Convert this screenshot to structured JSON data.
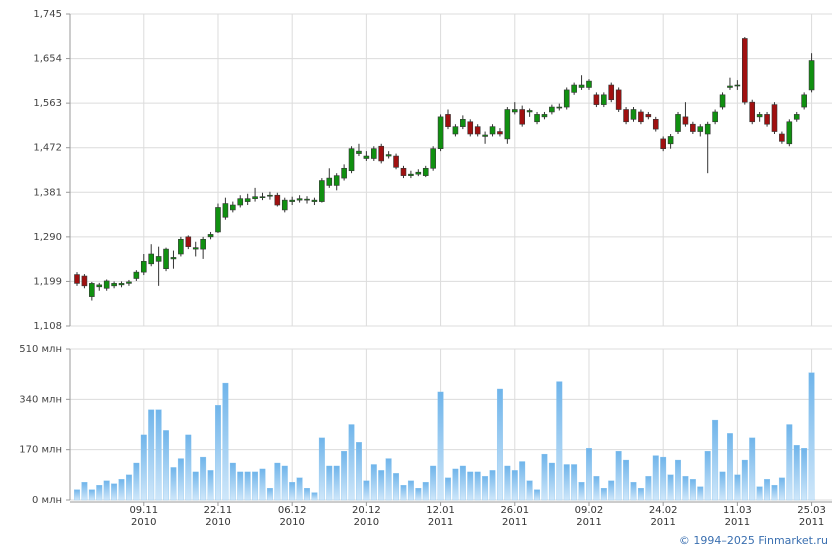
{
  "chart_data": [
    {
      "type": "candlestick",
      "up_color": "#109010",
      "down_color": "#a01010",
      "open": [
        1213,
        1210,
        1168,
        1188,
        1185,
        1190,
        1192,
        1195,
        1205,
        1218,
        1235,
        1240,
        1225,
        1245,
        1255,
        1290,
        1265,
        1265,
        1290,
        1300,
        1330,
        1345,
        1355,
        1362,
        1368,
        1370,
        1373,
        1375,
        1345,
        1362,
        1365,
        1365,
        1362,
        1362,
        1395,
        1395,
        1410,
        1425,
        1460,
        1450,
        1450,
        1475,
        1455,
        1455,
        1430,
        1415,
        1418,
        1415,
        1430,
        1470,
        1540,
        1500,
        1515,
        1525,
        1515,
        1495,
        1500,
        1505,
        1490,
        1545,
        1550,
        1545,
        1525,
        1535,
        1545,
        1553,
        1555,
        1585,
        1595,
        1595,
        1580,
        1560,
        1600,
        1590,
        1550,
        1530,
        1545,
        1540,
        1530,
        1490,
        1480,
        1505,
        1535,
        1520,
        1505,
        1500,
        1525,
        1555,
        1595,
        1598,
        1695,
        1565,
        1535,
        1540,
        1560,
        1500,
        1480,
        1530,
        1555,
        1590
      ],
      "high": [
        1218,
        1214,
        1198,
        1196,
        1203,
        1199,
        1199,
        1202,
        1222,
        1255,
        1275,
        1270,
        1268,
        1262,
        1290,
        1293,
        1280,
        1290,
        1300,
        1358,
        1370,
        1362,
        1375,
        1378,
        1390,
        1380,
        1382,
        1380,
        1370,
        1372,
        1375,
        1373,
        1370,
        1410,
        1430,
        1420,
        1438,
        1475,
        1480,
        1465,
        1475,
        1480,
        1465,
        1460,
        1435,
        1425,
        1428,
        1435,
        1475,
        1540,
        1550,
        1520,
        1538,
        1530,
        1520,
        1505,
        1520,
        1512,
        1555,
        1565,
        1558,
        1552,
        1545,
        1545,
        1560,
        1562,
        1595,
        1605,
        1620,
        1612,
        1585,
        1585,
        1605,
        1595,
        1555,
        1555,
        1550,
        1545,
        1535,
        1495,
        1500,
        1545,
        1565,
        1525,
        1520,
        1525,
        1550,
        1585,
        1615,
        1610,
        1698,
        1570,
        1545,
        1545,
        1565,
        1505,
        1530,
        1545,
        1585,
        1665
      ],
      "low": [
        1190,
        1185,
        1160,
        1180,
        1180,
        1185,
        1187,
        1190,
        1200,
        1212,
        1230,
        1190,
        1220,
        1225,
        1250,
        1265,
        1250,
        1245,
        1285,
        1298,
        1325,
        1340,
        1350,
        1355,
        1362,
        1365,
        1366,
        1352,
        1340,
        1355,
        1360,
        1358,
        1355,
        1360,
        1390,
        1385,
        1405,
        1420,
        1455,
        1445,
        1445,
        1440,
        1450,
        1428,
        1410,
        1410,
        1414,
        1412,
        1425,
        1465,
        1510,
        1495,
        1510,
        1495,
        1495,
        1480,
        1495,
        1495,
        1480,
        1540,
        1515,
        1535,
        1520,
        1530,
        1540,
        1548,
        1550,
        1580,
        1590,
        1590,
        1555,
        1555,
        1565,
        1545,
        1520,
        1525,
        1520,
        1530,
        1505,
        1465,
        1470,
        1500,
        1515,
        1500,
        1495,
        1420,
        1520,
        1550,
        1590,
        1590,
        1560,
        1520,
        1525,
        1515,
        1500,
        1480,
        1475,
        1525,
        1550,
        1585
      ],
      "close": [
        1195,
        1190,
        1195,
        1192,
        1200,
        1195,
        1195,
        1198,
        1218,
        1240,
        1255,
        1250,
        1265,
        1248,
        1285,
        1270,
        1268,
        1285,
        1295,
        1350,
        1358,
        1355,
        1368,
        1368,
        1372,
        1372,
        1375,
        1355,
        1365,
        1365,
        1368,
        1367,
        1365,
        1405,
        1410,
        1415,
        1430,
        1470,
        1465,
        1455,
        1470,
        1445,
        1458,
        1432,
        1415,
        1418,
        1422,
        1430,
        1470,
        1535,
        1515,
        1515,
        1530,
        1500,
        1500,
        1498,
        1515,
        1500,
        1550,
        1550,
        1520,
        1548,
        1540,
        1540,
        1555,
        1555,
        1590,
        1600,
        1600,
        1608,
        1560,
        1580,
        1570,
        1550,
        1525,
        1550,
        1525,
        1535,
        1510,
        1470,
        1495,
        1540,
        1520,
        1505,
        1515,
        1520,
        1545,
        1580,
        1598,
        1600,
        1565,
        1525,
        1540,
        1520,
        1505,
        1485,
        1525,
        1540,
        1580,
        1650
      ],
      "ylim": [
        1108,
        1745
      ],
      "yticks": [
        {
          "value": 1108,
          "label": "1,108"
        },
        {
          "value": 1199,
          "label": "1,199"
        },
        {
          "value": 1290,
          "label": "1,290"
        },
        {
          "value": 1381,
          "label": "1,381"
        },
        {
          "value": 1472,
          "label": "1,472"
        },
        {
          "value": 1563,
          "label": "1,563"
        },
        {
          "value": 1654,
          "label": "1,654"
        },
        {
          "value": 1745,
          "label": "1,745"
        }
      ],
      "grid": true
    },
    {
      "type": "bar",
      "color": "#86c3ef",
      "categories": [
        null,
        null,
        null,
        null,
        null,
        null,
        null,
        null,
        null,
        "09.11\n2010",
        null,
        null,
        null,
        null,
        null,
        null,
        null,
        null,
        null,
        "22.11\n2010",
        null,
        null,
        null,
        null,
        null,
        null,
        null,
        null,
        null,
        "06.12\n2010",
        null,
        null,
        null,
        null,
        null,
        null,
        null,
        null,
        null,
        "20.12\n2010",
        null,
        null,
        null,
        null,
        null,
        null,
        null,
        null,
        null,
        "12.01\n2011",
        null,
        null,
        null,
        null,
        null,
        null,
        null,
        null,
        null,
        "26.01\n2011",
        null,
        null,
        null,
        null,
        null,
        null,
        null,
        null,
        null,
        "09.02\n2011",
        null,
        null,
        null,
        null,
        null,
        null,
        null,
        null,
        null,
        "24.02\n2011",
        null,
        null,
        null,
        null,
        null,
        null,
        null,
        null,
        null,
        "11.03\n2011",
        null,
        null,
        null,
        null,
        null,
        null,
        null,
        null,
        null,
        "25.03\n2011"
      ],
      "values": [
        35,
        60,
        35,
        50,
        65,
        55,
        70,
        85,
        125,
        220,
        305,
        305,
        235,
        110,
        140,
        220,
        95,
        145,
        100,
        320,
        395,
        125,
        95,
        95,
        95,
        105,
        40,
        125,
        115,
        60,
        75,
        40,
        25,
        210,
        115,
        115,
        165,
        255,
        195,
        65,
        120,
        100,
        140,
        90,
        50,
        65,
        40,
        60,
        115,
        365,
        75,
        105,
        115,
        95,
        95,
        80,
        100,
        375,
        115,
        100,
        130,
        65,
        35,
        155,
        125,
        400,
        120,
        120,
        60,
        175,
        80,
        40,
        65,
        165,
        135,
        60,
        40,
        80,
        150,
        145,
        85,
        135,
        80,
        70,
        45,
        165,
        270,
        95,
        225,
        85,
        135,
        210,
        45,
        70,
        50,
        75,
        255,
        185,
        175,
        430
      ],
      "ylim": [
        0,
        510
      ],
      "yticks": [
        {
          "value": 0,
          "label": "0 млн"
        },
        {
          "value": 170,
          "label": "170 млн"
        },
        {
          "value": 340,
          "label": "340 млн"
        },
        {
          "value": 510,
          "label": "510 млн"
        }
      ],
      "grid": true
    }
  ],
  "footer": "© 1994–2025 Finmarket.ru"
}
